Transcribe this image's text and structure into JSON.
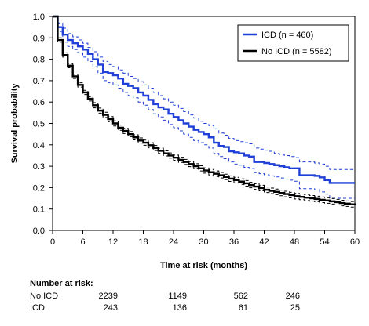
{
  "chart_data": {
    "type": "line",
    "xlabel": "Time at risk (months)",
    "ylabel": "Survival probability",
    "xlim": [
      0,
      60
    ],
    "ylim": [
      0,
      1.0
    ],
    "x_ticks": [
      "0",
      "6",
      "12",
      "18",
      "24",
      "30",
      "36",
      "42",
      "48",
      "54",
      "60"
    ],
    "y_ticks": [
      "0.0",
      "0.1",
      "0.2",
      "0.3",
      "0.4",
      "0.5",
      "0.6",
      "0.7",
      "0.8",
      "0.9",
      "1.0"
    ],
    "legend_position": "top-right",
    "series": [
      {
        "name": "ICD (n = 460)",
        "color": "#1f3fd6",
        "style": "step",
        "x": [
          0,
          1,
          2,
          3,
          4,
          5,
          6,
          7,
          8,
          9,
          10,
          11,
          12,
          13,
          14,
          15,
          16,
          17,
          18,
          19,
          20,
          21,
          22,
          23,
          24,
          25,
          26,
          27,
          28,
          29,
          30,
          31,
          32,
          33,
          34,
          35,
          36,
          37,
          38,
          39,
          40,
          41,
          42,
          43,
          44,
          45,
          46,
          47,
          48,
          49,
          50,
          51,
          52,
          53,
          54,
          55,
          56,
          57,
          58,
          59,
          60
        ],
        "y": [
          1.0,
          0.95,
          0.915,
          0.89,
          0.875,
          0.86,
          0.845,
          0.825,
          0.8,
          0.775,
          0.74,
          0.735,
          0.725,
          0.71,
          0.685,
          0.675,
          0.665,
          0.645,
          0.63,
          0.61,
          0.59,
          0.575,
          0.565,
          0.545,
          0.53,
          0.515,
          0.5,
          0.485,
          0.47,
          0.46,
          0.45,
          0.435,
          0.41,
          0.395,
          0.39,
          0.37,
          0.365,
          0.36,
          0.35,
          0.345,
          0.32,
          0.32,
          0.315,
          0.31,
          0.305,
          0.3,
          0.295,
          0.29,
          0.29,
          0.258,
          0.258,
          0.258,
          0.255,
          0.248,
          0.235,
          0.222,
          0.222,
          0.222,
          0.222,
          0.222,
          0.222
        ],
        "ci_upper": [
          1.0,
          0.97,
          0.945,
          0.92,
          0.905,
          0.89,
          0.875,
          0.855,
          0.835,
          0.81,
          0.79,
          0.775,
          0.765,
          0.75,
          0.735,
          0.72,
          0.71,
          0.695,
          0.68,
          0.665,
          0.645,
          0.63,
          0.615,
          0.6,
          0.585,
          0.57,
          0.555,
          0.54,
          0.525,
          0.51,
          0.5,
          0.49,
          0.475,
          0.455,
          0.445,
          0.43,
          0.42,
          0.415,
          0.41,
          0.405,
          0.385,
          0.38,
          0.375,
          0.37,
          0.36,
          0.355,
          0.35,
          0.345,
          0.34,
          0.32,
          0.32,
          0.32,
          0.315,
          0.31,
          0.3,
          0.285,
          0.285,
          0.285,
          0.285,
          0.285,
          0.285
        ],
        "ci_lower": [
          1.0,
          0.93,
          0.88,
          0.86,
          0.845,
          0.83,
          0.81,
          0.79,
          0.765,
          0.735,
          0.7,
          0.69,
          0.68,
          0.665,
          0.645,
          0.63,
          0.62,
          0.6,
          0.585,
          0.565,
          0.545,
          0.53,
          0.515,
          0.495,
          0.48,
          0.465,
          0.45,
          0.435,
          0.42,
          0.41,
          0.4,
          0.385,
          0.36,
          0.345,
          0.335,
          0.32,
          0.31,
          0.305,
          0.295,
          0.29,
          0.27,
          0.265,
          0.26,
          0.255,
          0.25,
          0.245,
          0.24,
          0.235,
          0.23,
          0.195,
          0.195,
          0.195,
          0.19,
          0.18,
          0.17,
          0.15,
          0.15,
          0.15,
          0.15,
          0.15,
          0.15
        ]
      },
      {
        "name": "No ICD (n = 5582)",
        "color": "#000000",
        "style": "step",
        "x": [
          0,
          1,
          2,
          3,
          4,
          5,
          6,
          7,
          8,
          9,
          10,
          11,
          12,
          13,
          14,
          15,
          16,
          17,
          18,
          19,
          20,
          21,
          22,
          23,
          24,
          25,
          26,
          27,
          28,
          29,
          30,
          31,
          32,
          33,
          34,
          35,
          36,
          37,
          38,
          39,
          40,
          41,
          42,
          43,
          44,
          45,
          46,
          47,
          48,
          49,
          50,
          51,
          52,
          53,
          54,
          55,
          56,
          57,
          58,
          59,
          60
        ],
        "y": [
          1.0,
          0.89,
          0.82,
          0.77,
          0.72,
          0.68,
          0.645,
          0.615,
          0.585,
          0.56,
          0.54,
          0.52,
          0.5,
          0.48,
          0.465,
          0.45,
          0.435,
          0.42,
          0.41,
          0.398,
          0.385,
          0.372,
          0.36,
          0.35,
          0.34,
          0.33,
          0.32,
          0.31,
          0.3,
          0.29,
          0.28,
          0.272,
          0.265,
          0.258,
          0.25,
          0.242,
          0.235,
          0.228,
          0.22,
          0.212,
          0.205,
          0.198,
          0.19,
          0.185,
          0.18,
          0.175,
          0.17,
          0.165,
          0.16,
          0.157,
          0.153,
          0.15,
          0.147,
          0.143,
          0.14,
          0.136,
          0.132,
          0.128,
          0.125,
          0.122,
          0.118
        ],
        "ci_upper": [
          1.0,
          0.9,
          0.83,
          0.78,
          0.73,
          0.69,
          0.655,
          0.625,
          0.597,
          0.572,
          0.552,
          0.532,
          0.512,
          0.492,
          0.477,
          0.462,
          0.447,
          0.432,
          0.422,
          0.41,
          0.397,
          0.384,
          0.372,
          0.362,
          0.352,
          0.342,
          0.332,
          0.322,
          0.312,
          0.302,
          0.292,
          0.285,
          0.278,
          0.271,
          0.263,
          0.255,
          0.248,
          0.241,
          0.233,
          0.225,
          0.218,
          0.211,
          0.203,
          0.198,
          0.193,
          0.188,
          0.183,
          0.178,
          0.173,
          0.17,
          0.166,
          0.163,
          0.16,
          0.156,
          0.153,
          0.149,
          0.145,
          0.141,
          0.138,
          0.135,
          0.131
        ],
        "ci_lower": [
          1.0,
          0.88,
          0.81,
          0.76,
          0.71,
          0.67,
          0.635,
          0.605,
          0.573,
          0.548,
          0.528,
          0.508,
          0.488,
          0.468,
          0.453,
          0.438,
          0.423,
          0.408,
          0.398,
          0.386,
          0.373,
          0.36,
          0.348,
          0.338,
          0.328,
          0.318,
          0.308,
          0.298,
          0.288,
          0.278,
          0.268,
          0.259,
          0.252,
          0.245,
          0.237,
          0.229,
          0.222,
          0.215,
          0.207,
          0.199,
          0.192,
          0.185,
          0.177,
          0.172,
          0.167,
          0.162,
          0.157,
          0.152,
          0.147,
          0.144,
          0.14,
          0.137,
          0.134,
          0.13,
          0.127,
          0.123,
          0.119,
          0.115,
          0.112,
          0.109,
          0.105
        ]
      }
    ]
  },
  "risk_table": {
    "title": "Number at risk:",
    "rows": [
      {
        "label": "No ICD",
        "values": [
          "2239",
          "1149",
          "562",
          "246"
        ]
      },
      {
        "label": "ICD",
        "values": [
          "243",
          "136",
          "61",
          "25"
        ]
      }
    ]
  }
}
